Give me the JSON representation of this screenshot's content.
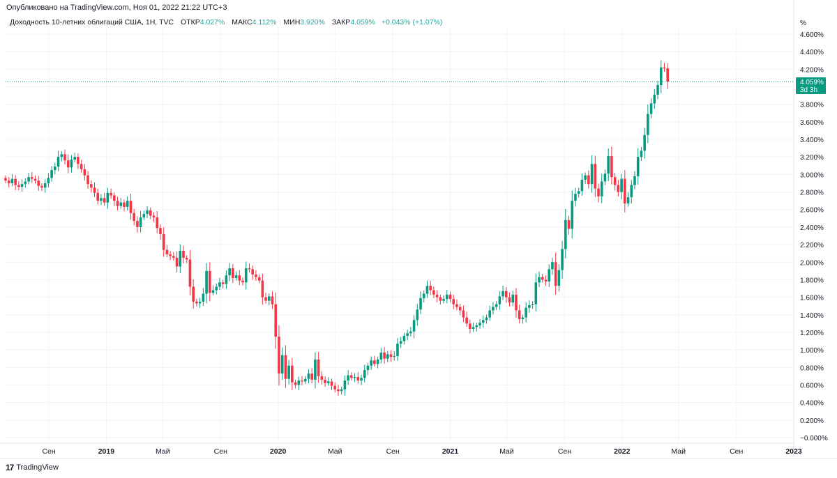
{
  "header": {
    "published": "Опубликовано на TradingView.com, Ноя 01, 2022 21:22 UTC+3"
  },
  "legend": {
    "symbol": "Доходность 10-летних облигаций США, 1Н, TVC",
    "open_label": "ОТКР",
    "open_value": "4.027%",
    "high_label": "МАКС",
    "high_value": "4.112%",
    "low_label": "МИН",
    "low_value": "3.920%",
    "close_label": "ЗАКР",
    "close_value": "4.059%",
    "change": "+0.043% (+1.07%)"
  },
  "price_tag": {
    "value": "4.059%",
    "countdown": "3d 3h",
    "color": "#089981"
  },
  "footer": {
    "brand": "TradingView",
    "logo_glyph": "17"
  },
  "colors": {
    "up": "#089981",
    "down": "#f23645",
    "grid": "#f0f3fa",
    "axis_text": "#131722"
  },
  "chart_data": {
    "type": "candlestick",
    "title": "Доходность 10-летних облигаций США, 1Н, TVC",
    "yunit": "%",
    "ylim": [
      -0.0,
      4.65
    ],
    "ytick_labels": [
      "4.600%",
      "4.400%",
      "4.200%",
      "4.000%",
      "3.800%",
      "3.600%",
      "3.400%",
      "3.200%",
      "3.000%",
      "2.800%",
      "2.600%",
      "2.400%",
      "2.200%",
      "2.000%",
      "1.800%",
      "1.600%",
      "1.400%",
      "1.200%",
      "1.000%",
      "0.800%",
      "0.600%",
      "0.400%",
      "0.200%",
      "−0.000%"
    ],
    "ytick_values": [
      4.6,
      4.4,
      4.2,
      4.0,
      3.8,
      3.6,
      3.4,
      3.2,
      3.0,
      2.8,
      2.6,
      2.4,
      2.2,
      2.0,
      1.8,
      1.6,
      1.4,
      1.2,
      1.0,
      0.8,
      0.6,
      0.4,
      0.2,
      0.0
    ],
    "xtick_labels": [
      "Сен",
      "2019",
      "Май",
      "Сен",
      "2020",
      "Май",
      "Сен",
      "2021",
      "Май",
      "Сен",
      "2022",
      "Май",
      "Сен",
      "2023"
    ],
    "xtick_dates": [
      "2018-09-01",
      "2019-01-01",
      "2019-05-01",
      "2019-09-01",
      "2020-01-01",
      "2020-05-01",
      "2020-09-01",
      "2021-01-01",
      "2021-05-01",
      "2021-09-01",
      "2022-01-01",
      "2022-05-01",
      "2022-09-01",
      "2023-01-01"
    ],
    "xtick_bold": [
      false,
      true,
      false,
      false,
      true,
      false,
      false,
      true,
      false,
      false,
      true,
      false,
      false,
      true
    ],
    "xlim": [
      "2018-06-01",
      "2023-01-01"
    ],
    "last_close": 4.059,
    "weekly_close": [
      2.93,
      2.9,
      2.95,
      2.88,
      2.86,
      2.89,
      2.92,
      2.97,
      2.95,
      2.93,
      2.87,
      2.85,
      2.9,
      2.96,
      3.05,
      3.09,
      3.2,
      3.23,
      3.16,
      3.08,
      3.17,
      3.2,
      3.12,
      3.06,
      2.99,
      2.89,
      2.85,
      2.79,
      2.7,
      2.73,
      2.68,
      2.79,
      2.76,
      2.7,
      2.64,
      2.68,
      2.63,
      2.7,
      2.56,
      2.47,
      2.4,
      2.51,
      2.55,
      2.59,
      2.53,
      2.51,
      2.39,
      2.32,
      2.14,
      2.09,
      2.07,
      2.05,
      1.95,
      2.13,
      2.05,
      2.03,
      1.72,
      1.55,
      1.53,
      1.55,
      1.64,
      1.9,
      1.65,
      1.68,
      1.72,
      1.77,
      1.75,
      1.85,
      1.93,
      1.82,
      1.85,
      1.79,
      1.77,
      1.93,
      1.92,
      1.86,
      1.83,
      1.79,
      1.6,
      1.56,
      1.61,
      1.52,
      1.15,
      0.73,
      0.94,
      0.67,
      0.82,
      0.63,
      0.6,
      0.65,
      0.64,
      0.67,
      0.73,
      0.66,
      0.89,
      0.7,
      0.66,
      0.62,
      0.64,
      0.59,
      0.55,
      0.53,
      0.55,
      0.65,
      0.71,
      0.68,
      0.69,
      0.65,
      0.68,
      0.77,
      0.82,
      0.88,
      0.84,
      0.89,
      0.97,
      0.9,
      0.95,
      0.92,
      0.93,
      1.07,
      1.1,
      1.16,
      1.19,
      1.21,
      1.34,
      1.46,
      1.59,
      1.64,
      1.73,
      1.68,
      1.63,
      1.6,
      1.56,
      1.58,
      1.63,
      1.58,
      1.52,
      1.49,
      1.45,
      1.37,
      1.3,
      1.24,
      1.26,
      1.28,
      1.31,
      1.34,
      1.37,
      1.45,
      1.49,
      1.52,
      1.61,
      1.67,
      1.6,
      1.54,
      1.63,
      1.45,
      1.35,
      1.37,
      1.48,
      1.51,
      1.52,
      1.77,
      1.83,
      1.8,
      1.78,
      1.92,
      2.0,
      1.73,
      1.91,
      2.15,
      2.48,
      2.38,
      2.7,
      2.78,
      2.81,
      2.94,
      2.99,
      2.89,
      3.12,
      2.84,
      2.75,
      2.92,
      3.01,
      3.21,
      2.97,
      2.88,
      2.8,
      2.95,
      2.67,
      2.74,
      2.88,
      2.98,
      3.2,
      3.27,
      3.45,
      3.69,
      3.81,
      3.91,
      4.02,
      4.22,
      4.21,
      4.059
    ]
  }
}
